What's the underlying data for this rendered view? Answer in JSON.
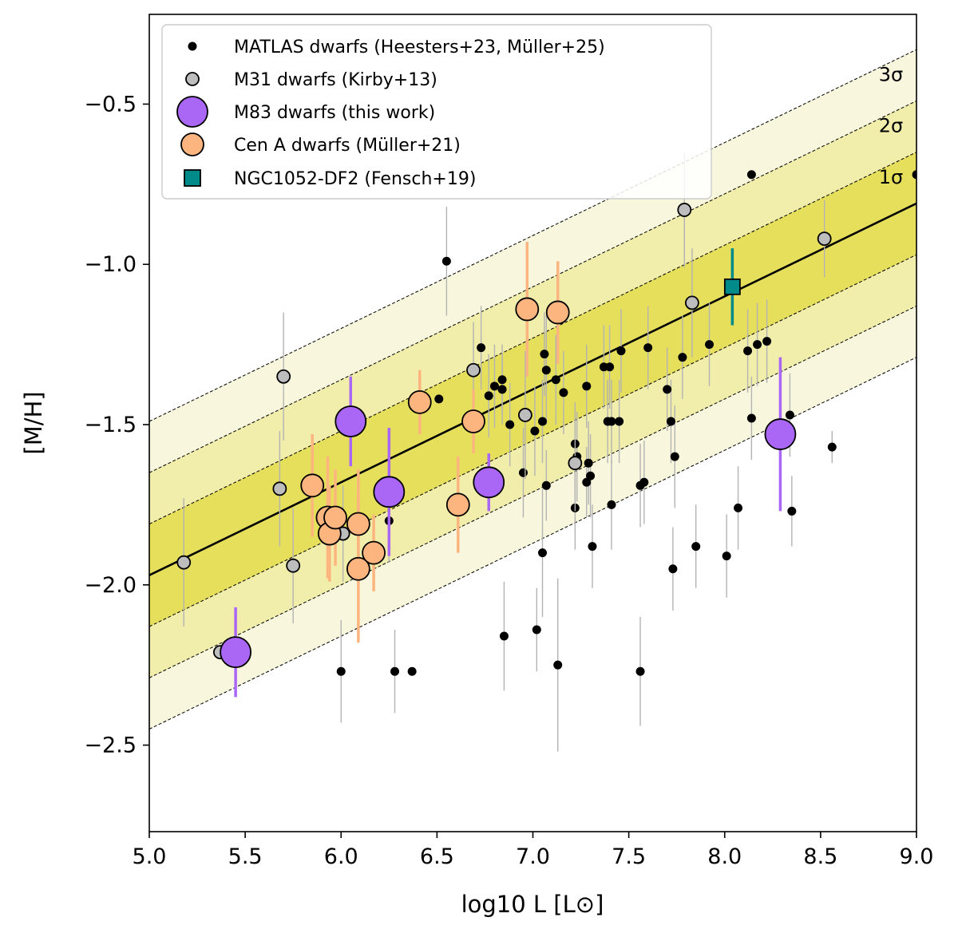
{
  "chart_data": {
    "type": "scatter",
    "xlabel": "log10 L [L⊙]",
    "ylabel": "[M/H]",
    "xlim": [
      5.0,
      9.0
    ],
    "ylim": [
      -2.77,
      -0.22
    ],
    "xticks": [
      5.0,
      5.5,
      6.0,
      6.5,
      7.0,
      7.5,
      8.0,
      8.5,
      9.0
    ],
    "yticks": [
      -2.5,
      -2.0,
      -1.5,
      -1.0,
      -0.5
    ],
    "xtick_labels": [
      "5.0",
      "5.5",
      "6.0",
      "6.5",
      "7.0",
      "7.5",
      "8.0",
      "8.5",
      "9.0"
    ],
    "ytick_labels": [
      "−2.5",
      "−2.0",
      "−1.5",
      "−1.0",
      "−0.5"
    ],
    "fit": {
      "slope": 0.29,
      "intercept": -3.42,
      "sigma": 0.16
    },
    "bands": [
      {
        "label": "1σ",
        "n": 1,
        "color": "#e6df5c"
      },
      {
        "label": "2σ",
        "n": 2,
        "color": "#f1eeac"
      },
      {
        "label": "3σ",
        "n": 3,
        "color": "#f8f7dd"
      }
    ],
    "series": [
      {
        "name": "MATLAS dwarfs (Heesters+23, Müller+25)",
        "marker": "circle",
        "size": 5,
        "color": "#000000",
        "edge": "#000000",
        "err_color": "#b3b3b3",
        "points": [
          [
            6.0,
            -2.27,
            0.16
          ],
          [
            6.28,
            -2.27,
            0.13
          ],
          [
            6.37,
            -2.27,
            0
          ],
          [
            6.25,
            -1.8,
            0.13
          ],
          [
            6.51,
            -1.42,
            0
          ],
          [
            6.55,
            -0.99,
            0.17
          ],
          [
            6.73,
            -1.26,
            0.13
          ],
          [
            6.77,
            -1.41,
            0.13
          ],
          [
            6.8,
            -1.38,
            0.13
          ],
          [
            6.84,
            -1.36,
            0.11
          ],
          [
            6.84,
            -1.39,
            0.11
          ],
          [
            6.88,
            -1.5,
            0.13
          ],
          [
            6.95,
            -1.65,
            0.14
          ],
          [
            7.01,
            -1.52,
            0.14
          ],
          [
            7.02,
            -2.14,
            0.13
          ],
          [
            6.85,
            -2.16,
            0.17
          ],
          [
            7.05,
            -1.49,
            0.13
          ],
          [
            7.06,
            -1.28,
            0.13
          ],
          [
            7.07,
            -1.33,
            0.17
          ],
          [
            7.07,
            -1.69,
            0.11
          ],
          [
            7.05,
            -1.9,
            0.2
          ],
          [
            7.12,
            -1.36,
            0.14
          ],
          [
            7.13,
            -2.25,
            0.27
          ],
          [
            7.16,
            -1.4,
            0.13
          ],
          [
            7.22,
            -1.56,
            0.13
          ],
          [
            7.22,
            -1.76,
            0.13
          ],
          [
            7.23,
            -1.6,
            0.14
          ],
          [
            7.28,
            -1.38,
            0.13
          ],
          [
            7.28,
            -1.68,
            0.11
          ],
          [
            7.29,
            -1.62,
            0.13
          ],
          [
            7.3,
            -1.66,
            0.13
          ],
          [
            7.31,
            -1.88,
            0.13
          ],
          [
            7.37,
            -1.32,
            0.13
          ],
          [
            7.39,
            -1.49,
            0.13
          ],
          [
            7.4,
            -1.32,
            0.13
          ],
          [
            7.41,
            -1.49,
            0.13
          ],
          [
            7.41,
            -1.75,
            0.14
          ],
          [
            7.45,
            -1.49,
            0.13
          ],
          [
            7.46,
            -1.27,
            0.13
          ],
          [
            7.56,
            -1.69,
            0.13
          ],
          [
            7.58,
            -1.68,
            0.13
          ],
          [
            7.56,
            -2.27,
            0.17
          ],
          [
            7.6,
            -1.26,
            0.13
          ],
          [
            7.7,
            -1.39,
            0.13
          ],
          [
            7.72,
            -1.49,
            0.13
          ],
          [
            7.73,
            -1.95,
            0.13
          ],
          [
            7.74,
            -1.6,
            0.16
          ],
          [
            7.78,
            -1.29,
            0.13
          ],
          [
            7.85,
            -1.88,
            0.13
          ],
          [
            7.92,
            -1.25,
            0.13
          ],
          [
            8.01,
            -1.91,
            0.13
          ],
          [
            8.07,
            -1.76,
            0.13
          ],
          [
            8.12,
            -1.27,
            0.13
          ],
          [
            8.14,
            -1.48,
            0.13
          ],
          [
            8.14,
            -0.72,
            0
          ],
          [
            8.17,
            -1.25,
            0.13
          ],
          [
            8.22,
            -1.24,
            0.13
          ],
          [
            8.34,
            -1.47,
            0.13
          ],
          [
            8.35,
            -1.77,
            0.11
          ],
          [
            8.56,
            -1.57,
            0.05
          ],
          [
            9.0,
            -0.72,
            0
          ]
        ]
      },
      {
        "name": "M31 dwarfs (Kirby+13)",
        "marker": "circle",
        "size": 8,
        "color": "#bdbdbd",
        "edge": "#000000",
        "err_color": "#b3b3b3",
        "points": [
          [
            5.18,
            -1.93,
            0.2
          ],
          [
            5.37,
            -2.21,
            0
          ],
          [
            5.68,
            -1.7,
            0.18
          ],
          [
            5.7,
            -1.35,
            0.2
          ],
          [
            5.75,
            -1.94,
            0.18
          ],
          [
            6.01,
            -1.84,
            0.15
          ],
          [
            6.69,
            -1.33,
            0.15
          ],
          [
            6.96,
            -1.47,
            0.2
          ],
          [
            7.22,
            -1.62,
            0.15
          ],
          [
            7.79,
            -0.83,
            0.18
          ],
          [
            7.83,
            -1.12,
            0.17
          ],
          [
            8.52,
            -0.92,
            0.12
          ]
        ]
      },
      {
        "name": "M83 dwarfs (this work)",
        "marker": "circle",
        "size": 19,
        "color": "#aa66f5",
        "edge": "#000000",
        "err_color": "#aa66f5",
        "points": [
          [
            5.45,
            -2.21,
            0.14
          ],
          [
            6.05,
            -1.49,
            0.14
          ],
          [
            6.25,
            -1.71,
            0.2
          ],
          [
            6.77,
            -1.68,
            0.09
          ],
          [
            8.29,
            -1.53,
            0.24
          ]
        ]
      },
      {
        "name": "Cen A dwarfs (Müller+21)",
        "marker": "circle",
        "size": 14,
        "color": "#fdb57f",
        "edge": "#000000",
        "err_color": "#fdb57f",
        "points": [
          [
            5.85,
            -1.69,
            0.16
          ],
          [
            5.93,
            -1.79,
            0.19
          ],
          [
            5.94,
            -1.84,
            0.15
          ],
          [
            5.97,
            -1.79,
            0.15
          ],
          [
            6.09,
            -1.81,
            0.17
          ],
          [
            6.09,
            -1.95,
            0.23
          ],
          [
            6.17,
            -1.9,
            0.12
          ],
          [
            6.41,
            -1.43,
            0.1
          ],
          [
            6.61,
            -1.75,
            0.15
          ],
          [
            6.69,
            -1.49,
            0.1
          ],
          [
            6.97,
            -1.14,
            0.21
          ],
          [
            7.13,
            -1.15,
            0.16
          ]
        ]
      },
      {
        "name": "NGC1052-DF2 (Fensch+19)",
        "marker": "square",
        "size": 19,
        "color": "#008b8b",
        "edge": "#000000",
        "err_color": "#008b8b",
        "points": [
          [
            8.04,
            -1.07,
            0.12
          ]
        ]
      }
    ]
  }
}
